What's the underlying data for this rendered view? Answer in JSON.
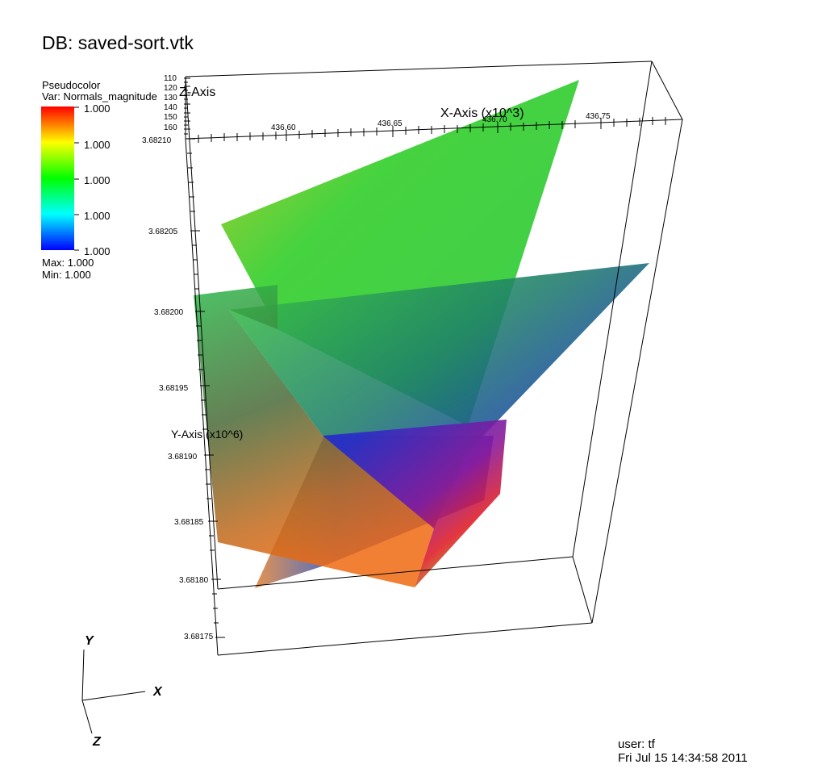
{
  "title": "DB: saved-sort.vtk",
  "legend": {
    "plot_type": "Pseudocolor",
    "variable": "Var: Normals_magnitude",
    "ticks": [
      "1.000",
      "1.000",
      "1.000",
      "1.000",
      "1.000"
    ],
    "max": "Max:  1.000",
    "min": "Min:  1.000"
  },
  "axes": {
    "x_title": "X-Axis (x10^3)",
    "y_title": "Y-Axis (x10^6)",
    "z_title": "Z-Axis",
    "x_ticks": [
      "436.60",
      "436.65",
      "436.70",
      "436.75"
    ],
    "y_ticks": [
      "3.68210",
      "3.68205",
      "3.68200",
      "3.68195",
      "3.68190",
      "3.68185",
      "3.68180",
      "3.68175"
    ],
    "z_ticks": [
      "110",
      "120",
      "130",
      "140",
      "150",
      "160"
    ]
  },
  "triad": {
    "x": "X",
    "y": "Y",
    "z": "Z"
  },
  "footer": {
    "user": "user: tf",
    "date": "Fri Jul 15 14:34:58 2011"
  },
  "colors": {
    "background": "#ffffff",
    "red": "#ff0000",
    "yellow": "#ffff00",
    "green": "#00ff00",
    "cyan": "#00ffff",
    "blue": "#0000ff"
  }
}
